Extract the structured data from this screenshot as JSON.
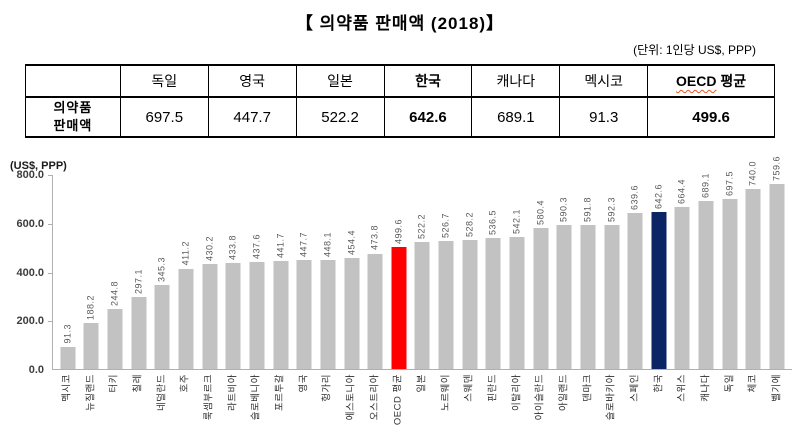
{
  "title": "【 의약품 판매액 (2018)】",
  "unit_note": "(단위: 1인당 US$, PPP)",
  "table": {
    "row_header_lines": [
      "의약품",
      "판매액"
    ],
    "columns": [
      {
        "label": "독일",
        "value": "697.5",
        "bold": false
      },
      {
        "label": "영국",
        "value": "447.7",
        "bold": false
      },
      {
        "label": "일본",
        "value": "522.2",
        "bold": false
      },
      {
        "label": "한국",
        "value": "642.6",
        "bold": true
      },
      {
        "label": "캐나다",
        "value": "689.1",
        "bold": false
      },
      {
        "label": "멕시코",
        "value": "91.3",
        "bold": false
      },
      {
        "label": "OECD 평균",
        "value": "499.6",
        "bold": true,
        "squiggle": "OECD"
      }
    ]
  },
  "chart_data": {
    "type": "bar",
    "ylabel": "(US$, PPP)",
    "xlabel": "",
    "ylim": [
      0,
      800
    ],
    "yticks": [
      "800.0",
      "600.0",
      "400.0",
      "200.0",
      "0.0"
    ],
    "grid": false,
    "legend": false,
    "colors": {
      "default": "#c2c2c2",
      "highlight_red": "#fe0000",
      "highlight_navy": "#0b2464"
    },
    "bars": [
      {
        "label": "멕시코",
        "value": 91.3,
        "display": "91.3",
        "color": "default"
      },
      {
        "label": "뉴질랜드",
        "value": 188.2,
        "display": "188.2",
        "color": "default"
      },
      {
        "label": "터키",
        "value": 244.8,
        "display": "244.8",
        "color": "default"
      },
      {
        "label": "칠레",
        "value": 297.1,
        "display": "297.1",
        "color": "default"
      },
      {
        "label": "네덜란드",
        "value": 345.3,
        "display": "345.3",
        "color": "default"
      },
      {
        "label": "호주",
        "value": 411.2,
        "display": "411.2",
        "color": "default"
      },
      {
        "label": "룩셈부르크",
        "value": 430.2,
        "display": "430.2",
        "color": "default"
      },
      {
        "label": "라트비아",
        "value": 433.8,
        "display": "433.8",
        "color": "default"
      },
      {
        "label": "슬로베니아",
        "value": 437.6,
        "display": "437.6",
        "color": "default"
      },
      {
        "label": "포르투갈",
        "value": 441.7,
        "display": "441.7",
        "color": "default"
      },
      {
        "label": "영국",
        "value": 447.7,
        "display": "447.7",
        "color": "default"
      },
      {
        "label": "헝가리",
        "value": 448.1,
        "display": "448.1",
        "color": "default"
      },
      {
        "label": "에스토니아",
        "value": 454.4,
        "display": "454.4",
        "color": "default"
      },
      {
        "label": "오스트리아",
        "value": 473.8,
        "display": "473.8",
        "color": "default"
      },
      {
        "label": "OECD 평균",
        "value": 499.6,
        "display": "499.6",
        "color": "highlight_red"
      },
      {
        "label": "일본",
        "value": 522.2,
        "display": "522.2",
        "color": "default"
      },
      {
        "label": "노르웨이",
        "value": 526.7,
        "display": "526.7",
        "color": "default"
      },
      {
        "label": "스웨덴",
        "value": 528.2,
        "display": "528.2",
        "color": "default"
      },
      {
        "label": "핀란드",
        "value": 536.5,
        "display": "536.5",
        "color": "default"
      },
      {
        "label": "이탈리아",
        "value": 542.1,
        "display": "542.1",
        "color": "default"
      },
      {
        "label": "아이슬란드",
        "value": 580.4,
        "display": "580.4",
        "color": "default"
      },
      {
        "label": "아일랜드",
        "value": 590.3,
        "display": "590.3",
        "color": "default"
      },
      {
        "label": "덴마크",
        "value": 591.8,
        "display": "591.8",
        "color": "default"
      },
      {
        "label": "슬로바키아",
        "value": 592.3,
        "display": "592.3",
        "color": "default"
      },
      {
        "label": "스페인",
        "value": 639.6,
        "display": "639.6",
        "color": "default"
      },
      {
        "label": "한국",
        "value": 642.6,
        "display": "642.6",
        "color": "highlight_navy"
      },
      {
        "label": "스위스",
        "value": 664.4,
        "display": "664.4",
        "color": "default"
      },
      {
        "label": "캐나다",
        "value": 689.1,
        "display": "689.1",
        "color": "default"
      },
      {
        "label": "독일",
        "value": 697.5,
        "display": "697.5",
        "color": "default"
      },
      {
        "label": "체코",
        "value": 740.0,
        "display": "740.0",
        "color": "default"
      },
      {
        "label": "벨기에",
        "value": 759.6,
        "display": "759.6",
        "color": "default"
      }
    ]
  }
}
